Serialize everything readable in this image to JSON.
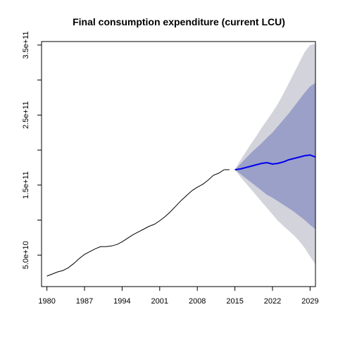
{
  "chart_data": {
    "type": "line",
    "title": "Final consumption expenditure (current LCU)",
    "xlabel": "",
    "ylabel": "",
    "xlim": [
      1979,
      2030
    ],
    "ylim": [
      5000000000,
      355000000000
    ],
    "grid": false,
    "x_ticks": [
      1980,
      1987,
      1994,
      2001,
      2008,
      2015,
      2022,
      2029
    ],
    "x_tick_labels": [
      "1980",
      "1987",
      "1994",
      "2001",
      "2008",
      "2015",
      "2022",
      "2029"
    ],
    "y_ticks": [
      50000000000,
      150000000000,
      250000000000,
      350000000000
    ],
    "y_tick_labels": [
      "5.0e+10",
      "1.5e+11",
      "2.5e+11",
      "3.5e+11"
    ],
    "y_minor_ticks": [
      100000000000,
      200000000000,
      300000000000
    ],
    "colors": {
      "history": "#000000",
      "forecast": "#0000ee",
      "band80": "#9aa0c8",
      "band95": "#d3d3db"
    },
    "series": [
      {
        "kind": "history",
        "x": [
          1980,
          1981,
          1982,
          1983,
          1984,
          1985,
          1986,
          1987,
          1988,
          1989,
          1990,
          1991,
          1992,
          1993,
          1994,
          1995,
          1996,
          1997,
          1998,
          1999,
          2000,
          2001,
          2002,
          2003,
          2004,
          2005,
          2006,
          2007,
          2008,
          2009,
          2010,
          2011,
          2012,
          2013,
          2014
        ],
        "values": [
          20000000000,
          23000000000,
          26000000000,
          28000000000,
          32000000000,
          38000000000,
          45000000000,
          51000000000,
          55000000000,
          59000000000,
          62000000000,
          62000000000,
          63000000000,
          65000000000,
          69000000000,
          74000000000,
          79000000000,
          83000000000,
          87000000000,
          91000000000,
          94000000000,
          99000000000,
          105000000000,
          112000000000,
          120000000000,
          128000000000,
          135000000000,
          142000000000,
          147000000000,
          151000000000,
          157000000000,
          164000000000,
          167000000000,
          172000000000,
          172000000000
        ]
      },
      {
        "kind": "forecast",
        "x": [
          2015,
          2016,
          2017,
          2018,
          2019,
          2020,
          2021,
          2022,
          2023,
          2024,
          2025,
          2026,
          2027,
          2028,
          2029,
          2030
        ],
        "values": [
          172000000000,
          173000000000,
          175000000000,
          177000000000,
          179000000000,
          181000000000,
          182000000000,
          180000000000,
          181000000000,
          183000000000,
          186000000000,
          188000000000,
          190000000000,
          192000000000,
          193000000000,
          190000000000
        ],
        "lower80": [
          172000000000,
          166000000000,
          160000000000,
          154000000000,
          148000000000,
          142000000000,
          136000000000,
          132000000000,
          127000000000,
          122000000000,
          117000000000,
          112000000000,
          106000000000,
          100000000000,
          93000000000,
          87000000000
        ],
        "upper80": [
          172000000000,
          180000000000,
          188000000000,
          196000000000,
          203000000000,
          210000000000,
          218000000000,
          225000000000,
          234000000000,
          243000000000,
          252000000000,
          262000000000,
          272000000000,
          282000000000,
          291000000000,
          296000000000
        ],
        "lower95": [
          172000000000,
          162000000000,
          153000000000,
          144000000000,
          135000000000,
          126000000000,
          117000000000,
          108000000000,
          99000000000,
          92000000000,
          85000000000,
          78000000000,
          70000000000,
          60000000000,
          48000000000,
          37000000000
        ],
        "upper95": [
          172000000000,
          185000000000,
          197000000000,
          209000000000,
          220000000000,
          232000000000,
          243000000000,
          254000000000,
          266000000000,
          280000000000,
          295000000000,
          310000000000,
          325000000000,
          340000000000,
          350000000000,
          352000000000
        ]
      }
    ]
  }
}
